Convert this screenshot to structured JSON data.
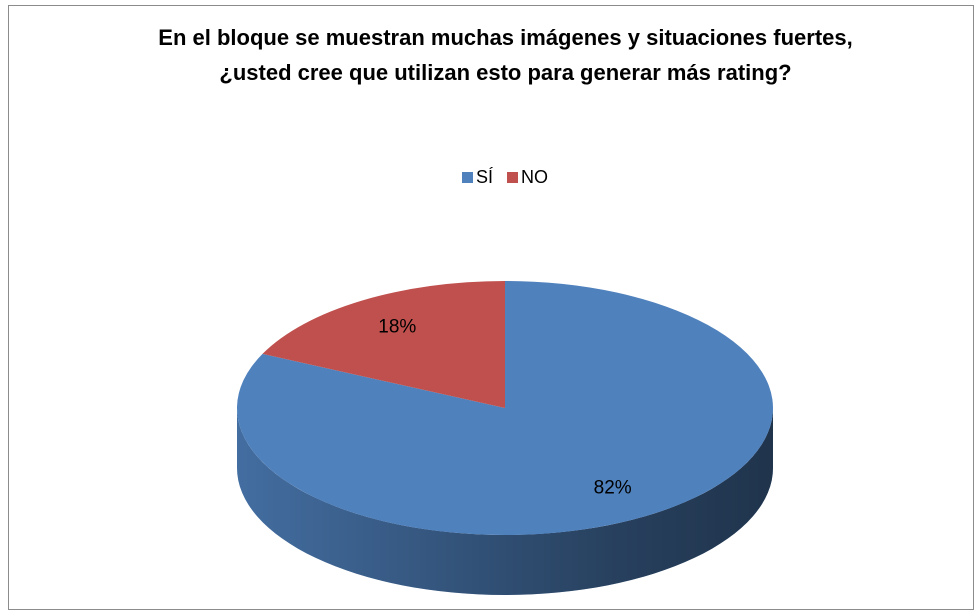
{
  "chart_data": {
    "type": "pie",
    "title": "En el bloque se muestran muchas imágenes y situaciones fuertes, ¿usted cree que utilizan esto para generar más rating?",
    "categories": [
      "SÍ",
      "NO"
    ],
    "values": [
      82,
      18
    ],
    "value_labels": [
      "82%",
      "18%"
    ],
    "colors": [
      "#4f81bd",
      "#c0504d"
    ],
    "legend": "top"
  }
}
